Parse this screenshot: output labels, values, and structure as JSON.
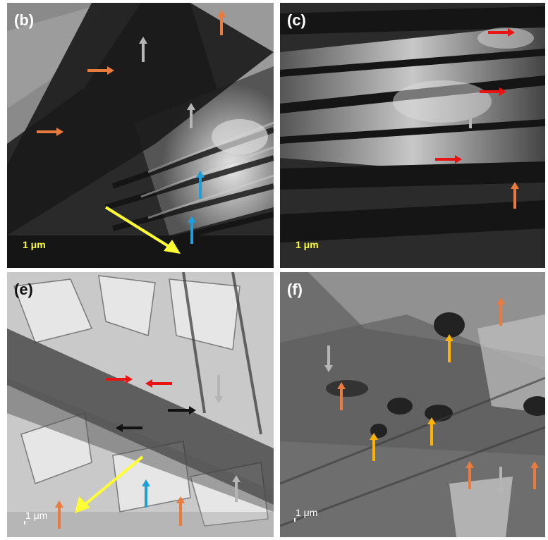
{
  "panels": [
    {
      "id": "b",
      "label": "(b)",
      "scale_text": "1 μm"
    },
    {
      "id": "c",
      "label": "(c)",
      "scale_text": "1 μm"
    },
    {
      "id": "e",
      "label": "(e)",
      "scale_text": "1 μm"
    },
    {
      "id": "f",
      "label": "(f)",
      "scale_text": "1 μm"
    }
  ],
  "colors": {
    "orange": "#e87c3e",
    "gray": "#b5b5b5",
    "blue": "#1f9ed8",
    "yellow": "#ffff33",
    "red": "#e81414",
    "black": "#111111",
    "gold": "#ffb300"
  }
}
